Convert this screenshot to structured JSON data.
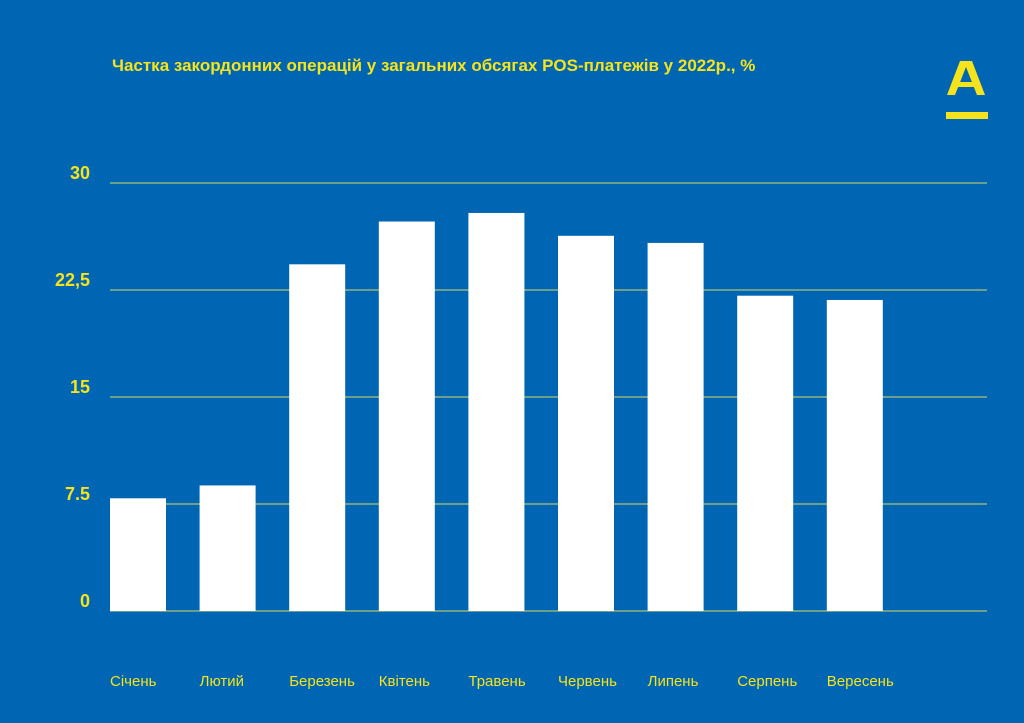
{
  "title": "Частка закордонних операцій у загальних обсягах POS-платежів у 2022р., %",
  "colors": {
    "background": "#0066b3",
    "accent": "#f5e31b",
    "bar": "#ffffff",
    "gridline": "#d8d86a",
    "category_label": "#f5e31b"
  },
  "logo": {
    "icon": "alfa-bank-logo-icon",
    "letter": "А"
  },
  "chart_data": {
    "type": "bar",
    "title": "Частка закордонних операцій у загальних обсягах POS-платежів у 2022р., %",
    "xlabel": "",
    "ylabel": "",
    "categories": [
      "Січень",
      "Лютий",
      "Березень",
      "Квітень",
      "Травень",
      "Червень",
      "Липень",
      "Серпень",
      "Вересень"
    ],
    "values": [
      7.9,
      8.8,
      24.3,
      27.3,
      27.9,
      26.3,
      25.8,
      22.1,
      21.8
    ],
    "ylim": [
      0,
      30
    ],
    "yticks": [
      0,
      7.5,
      15,
      22.5,
      30
    ],
    "ytick_labels": [
      "0",
      "7.5",
      "15",
      "22,5",
      "30"
    ],
    "grid": true,
    "legend": "none"
  }
}
